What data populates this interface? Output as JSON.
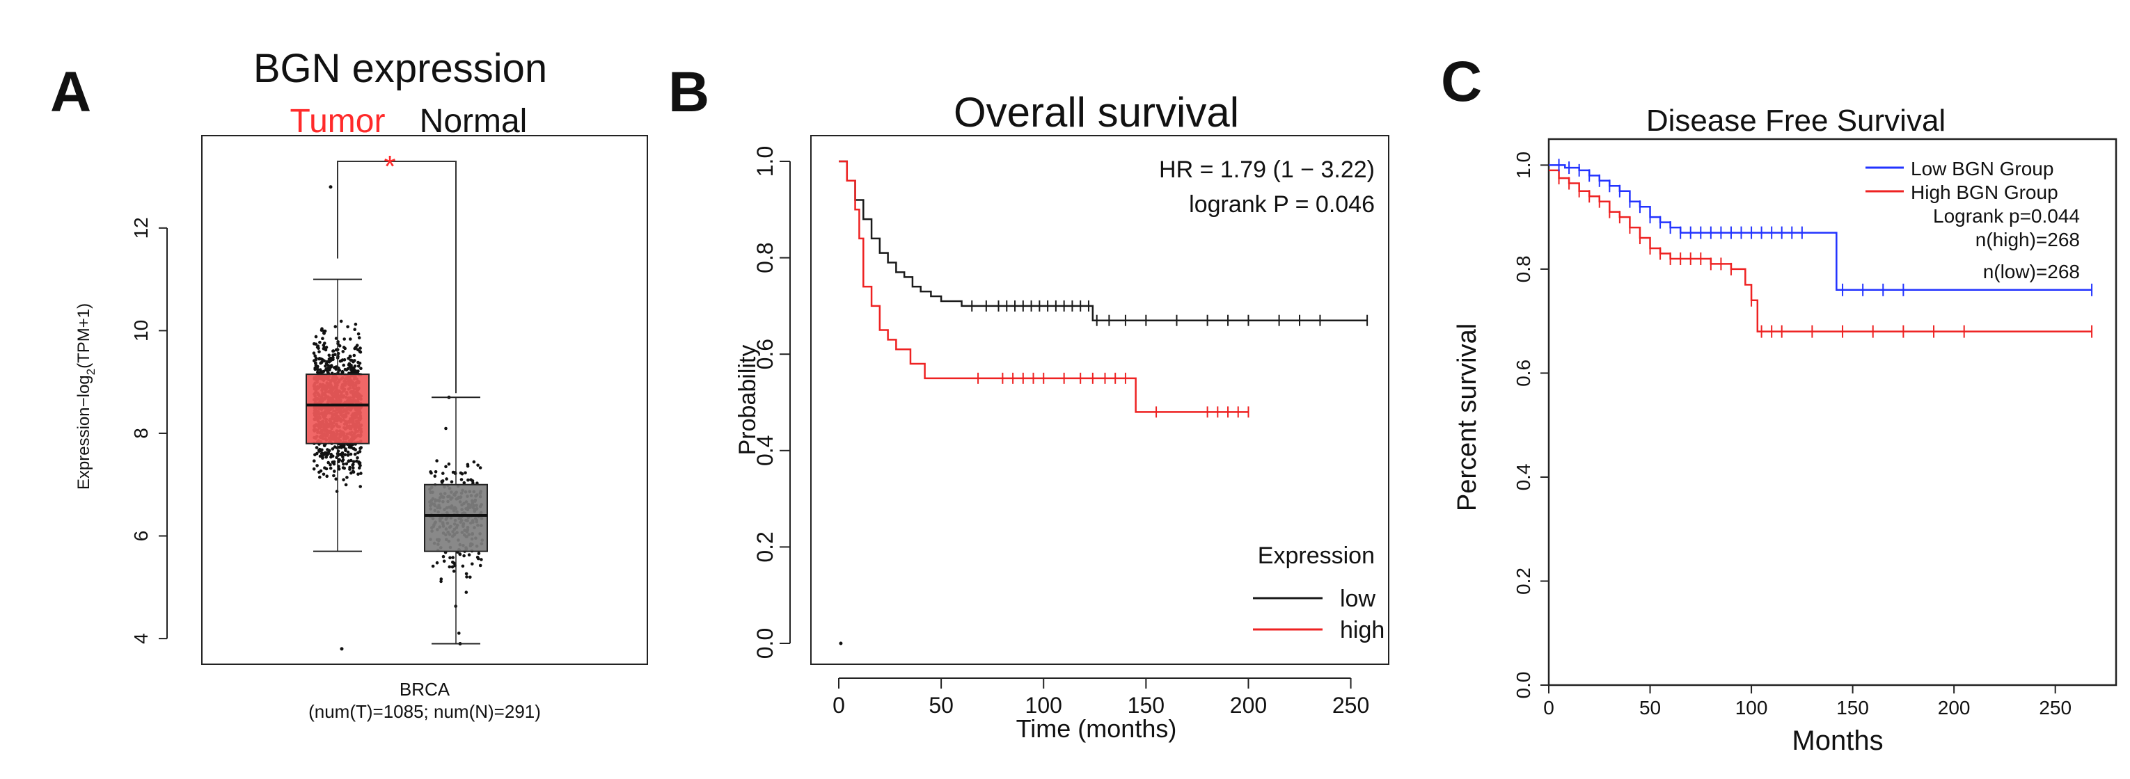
{
  "colors": {
    "tumor": "#f05a5a",
    "normal": "#7f7f7f",
    "red": "#ff2a2a",
    "black": "#111111",
    "blue": "#2233ff",
    "low_line": "#1a1a1a",
    "high_line": "#ee2222"
  },
  "chart_data": [
    {
      "panel": "A",
      "type": "box",
      "title": "BGN expression",
      "legend": [
        "Tumor",
        "Normal"
      ],
      "ylabel_prefix": "Expression",
      "ylabel_main": "−log",
      "ylabel_sub": "2",
      "ylabel_rest": "(TPM+1)",
      "ylim": [
        3.5,
        13.8
      ],
      "yticks": [
        "4",
        "6",
        "8",
        "10",
        "12"
      ],
      "xlabel": "BRCA",
      "xsublabel": "(num(T)=1085; num(N)=291)",
      "significance": "*",
      "groups": [
        {
          "name": "Tumor",
          "n": 1085,
          "whisker_low": 5.7,
          "q1": 7.8,
          "median": 8.55,
          "q3": 9.15,
          "whisker_high": 11.0,
          "min": 3.8,
          "max": 12.8
        },
        {
          "name": "Normal",
          "n": 291,
          "whisker_low": 3.9,
          "q1": 5.7,
          "median": 6.4,
          "q3": 7.0,
          "whisker_high": 8.7,
          "min": 3.9,
          "max": 8.7
        }
      ]
    },
    {
      "panel": "B",
      "type": "line",
      "title": "Overall survival",
      "xlabel": "Time (months)",
      "ylabel": "Probability",
      "xlim": [
        0,
        260
      ],
      "ylim": [
        0,
        1
      ],
      "xticks": [
        "0",
        "50",
        "100",
        "150",
        "200",
        "250"
      ],
      "yticks": [
        "0.0",
        "0.2",
        "0.4",
        "0.6",
        "0.8",
        "1.0"
      ],
      "hr_text": "HR = 1.79 (1 − 3.22)",
      "p_text": "logrank P = 0.046",
      "legend_title": "Expression",
      "series": [
        {
          "name": "low",
          "color": "#1a1a1a",
          "x": [
            0,
            4,
            8,
            12,
            16,
            20,
            24,
            28,
            32,
            36,
            40,
            45,
            50,
            60,
            70,
            80,
            90,
            100,
            110,
            120,
            124,
            150,
            200,
            258
          ],
          "y": [
            1.0,
            0.96,
            0.92,
            0.88,
            0.84,
            0.81,
            0.79,
            0.77,
            0.76,
            0.74,
            0.73,
            0.72,
            0.71,
            0.7,
            0.7,
            0.7,
            0.7,
            0.7,
            0.7,
            0.7,
            0.67,
            0.67,
            0.67,
            0.67
          ],
          "censor_x": [
            65,
            72,
            78,
            82,
            86,
            90,
            94,
            98,
            102,
            106,
            110,
            114,
            118,
            122,
            126,
            132,
            140,
            150,
            165,
            180,
            190,
            200,
            215,
            225,
            235,
            258
          ]
        },
        {
          "name": "high",
          "color": "#ee2222",
          "x": [
            0,
            4,
            8,
            10,
            12,
            16,
            20,
            24,
            28,
            35,
            42,
            60,
            80,
            100,
            120,
            140,
            145,
            160,
            180,
            200
          ],
          "y": [
            1.0,
            0.96,
            0.9,
            0.84,
            0.74,
            0.7,
            0.65,
            0.63,
            0.61,
            0.58,
            0.55,
            0.55,
            0.55,
            0.55,
            0.55,
            0.55,
            0.48,
            0.48,
            0.48,
            0.48
          ],
          "censor_x": [
            68,
            80,
            85,
            90,
            95,
            100,
            110,
            118,
            124,
            130,
            135,
            140,
            155,
            180,
            185,
            190,
            195,
            200
          ]
        }
      ],
      "stray_point": {
        "x": 1,
        "y": 0.0
      }
    },
    {
      "panel": "C",
      "type": "line",
      "title": "Disease Free Survival",
      "xlabel": "Months",
      "ylabel": "Percent survival",
      "xlim": [
        0,
        280
      ],
      "ylim": [
        0,
        1.05
      ],
      "xticks": [
        "0",
        "50",
        "100",
        "150",
        "200",
        "250"
      ],
      "yticks": [
        "0.0",
        "0.2",
        "0.4",
        "0.6",
        "0.8",
        "1.0"
      ],
      "legend": [
        "Low BGN Group",
        "High BGN Group"
      ],
      "stats": [
        "Logrank p=0.044",
        "n(high)=268",
        "n(low)=268"
      ],
      "series": [
        {
          "name": "Low BGN Group",
          "color": "#2233ff",
          "x": [
            0,
            8,
            15,
            20,
            25,
            30,
            35,
            40,
            45,
            50,
            55,
            60,
            65,
            70,
            100,
            120,
            140,
            142,
            200,
            268
          ],
          "y": [
            1.0,
            0.995,
            0.99,
            0.98,
            0.97,
            0.96,
            0.95,
            0.93,
            0.92,
            0.9,
            0.89,
            0.88,
            0.87,
            0.87,
            0.87,
            0.87,
            0.87,
            0.76,
            0.76,
            0.76
          ],
          "censor_x": [
            5,
            10,
            15,
            20,
            25,
            30,
            35,
            40,
            45,
            50,
            55,
            60,
            65,
            70,
            75,
            80,
            85,
            90,
            95,
            100,
            105,
            110,
            115,
            120,
            125,
            145,
            155,
            165,
            175,
            268
          ]
        },
        {
          "name": "High BGN Group",
          "color": "#ee2222",
          "x": [
            0,
            5,
            10,
            15,
            20,
            25,
            30,
            35,
            40,
            45,
            50,
            55,
            60,
            70,
            80,
            90,
            97,
            100,
            103,
            150,
            200,
            268
          ],
          "y": [
            0.99,
            0.975,
            0.965,
            0.95,
            0.94,
            0.93,
            0.91,
            0.9,
            0.88,
            0.86,
            0.84,
            0.83,
            0.82,
            0.82,
            0.81,
            0.8,
            0.77,
            0.74,
            0.68,
            0.68,
            0.68,
            0.68
          ],
          "censor_x": [
            5,
            10,
            15,
            20,
            25,
            30,
            35,
            40,
            45,
            50,
            55,
            60,
            65,
            70,
            75,
            80,
            85,
            90,
            100,
            105,
            110,
            115,
            130,
            145,
            160,
            175,
            190,
            205,
            268
          ]
        }
      ]
    }
  ],
  "panel_letters": {
    "a": "A",
    "b": "B",
    "c": "C"
  }
}
